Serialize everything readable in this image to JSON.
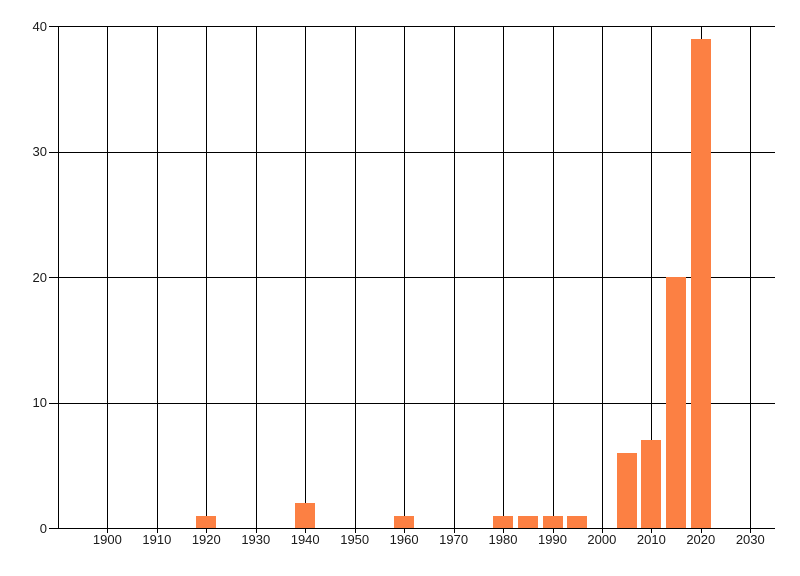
{
  "chart": {
    "title": "",
    "background_color": "#ffffff",
    "bar_color": "#fc8043",
    "grid_color": "#000000",
    "text_color": "#1a1a1a"
  },
  "chart_data": {
    "type": "bar",
    "title": "",
    "xlabel": "",
    "ylabel": "",
    "x": [
      1920,
      1940,
      1960,
      1980,
      1985,
      1990,
      1995,
      2005,
      2010,
      2015,
      2020
    ],
    "values": [
      1,
      2,
      1,
      1,
      1,
      1,
      1,
      6,
      7,
      20,
      39
    ],
    "bin_size_years": 5,
    "xlim": [
      1890,
      2035
    ],
    "ylim": [
      0,
      40
    ],
    "x_gridlines": [
      1890,
      1900,
      1910,
      1920,
      1930,
      1940,
      1950,
      1960,
      1970,
      1980,
      1990,
      2000,
      2010,
      2020,
      2030
    ],
    "x_tick_labels": [
      "1900",
      "1910",
      "1920",
      "1930",
      "1940",
      "1950",
      "1960",
      "1970",
      "1980",
      "1990",
      "2000",
      "2010",
      "2020",
      "2030"
    ],
    "x_tick_years": [
      1900,
      1910,
      1920,
      1930,
      1940,
      1950,
      1960,
      1970,
      1980,
      1990,
      2000,
      2010,
      2020,
      2030
    ],
    "y_tick_labels": [
      "0",
      "10",
      "20",
      "30",
      "40"
    ],
    "y_tick_values": [
      0,
      10,
      20,
      30,
      40
    ],
    "grid": true,
    "legend": false
  }
}
